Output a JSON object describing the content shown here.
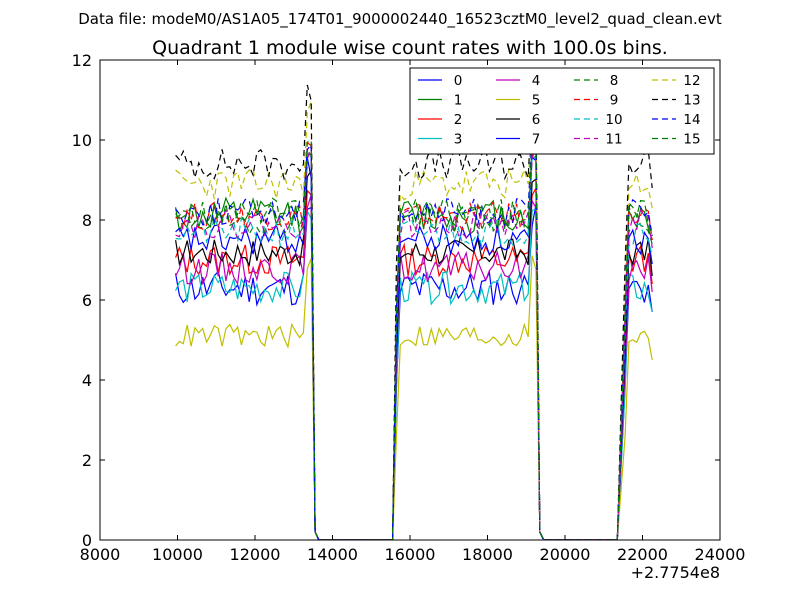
{
  "suptitle": "Data file: modeM0/AS1A05_174T01_9000002440_16523cztM0_level2_quad_clean.evt",
  "chart_data": {
    "type": "line",
    "title": "Quadrant 1 module wise count rates with 100.0s bins.",
    "xlabel": "",
    "ylabel": "",
    "x_offset_label": "+2.7754e8",
    "xlim": [
      8000,
      24000
    ],
    "ylim": [
      0,
      12
    ],
    "x_ticks": [
      8000,
      10000,
      12000,
      14000,
      16000,
      18000,
      20000,
      22000,
      24000
    ],
    "x_tick_labels": [
      "8000",
      "10000",
      "12000",
      "14000",
      "16000",
      "18000",
      "20000",
      "22000",
      "24000"
    ],
    "y_ticks": [
      0,
      2,
      4,
      6,
      8,
      10,
      12
    ],
    "y_tick_labels": [
      "0",
      "2",
      "4",
      "6",
      "8",
      "10",
      "12"
    ],
    "legend_position": "top-right",
    "legend_columns": 4,
    "segments": [
      {
        "start": 9950,
        "end": 13450,
        "step": 100
      },
      {
        "start": 15750,
        "end": 19250,
        "step": 100
      },
      {
        "start": 21650,
        "end": 22250,
        "step": 100
      }
    ],
    "gaps": [
      {
        "from": 13450,
        "down": 13550,
        "zero_start": 13650,
        "zero_end": 15550,
        "up": 15650
      },
      {
        "from": 19250,
        "down": 19350,
        "zero_start": 19450,
        "zero_end": 21350,
        "up": 21550
      }
    ],
    "series": [
      {
        "name": "0",
        "color": "#0000ff",
        "dash": "solid",
        "level": 6.3,
        "noise": 0.45,
        "seed": 11
      },
      {
        "name": "1",
        "color": "#008000",
        "dash": "solid",
        "level": 8.1,
        "noise": 0.45,
        "seed": 12
      },
      {
        "name": "2",
        "color": "#ff0000",
        "dash": "solid",
        "level": 7.0,
        "noise": 0.4,
        "seed": 13
      },
      {
        "name": "3",
        "color": "#00bfbf",
        "dash": "solid",
        "level": 6.3,
        "noise": 0.4,
        "seed": 14
      },
      {
        "name": "4",
        "color": "#bf00bf",
        "dash": "solid",
        "level": 6.8,
        "noise": 0.4,
        "seed": 15
      },
      {
        "name": "5",
        "color": "#bfbf00",
        "dash": "solid",
        "level": 5.1,
        "noise": 0.3,
        "seed": 16
      },
      {
        "name": "6",
        "color": "#000000",
        "dash": "solid",
        "level": 7.2,
        "noise": 0.35,
        "seed": 17
      },
      {
        "name": "7",
        "color": "#0000ff",
        "dash": "solid",
        "level": 7.5,
        "noise": 0.4,
        "seed": 18
      },
      {
        "name": "8",
        "color": "#008000",
        "dash": "dashed",
        "level": 8.0,
        "noise": 0.35,
        "seed": 19
      },
      {
        "name": "9",
        "color": "#ff0000",
        "dash": "dashed",
        "level": 8.1,
        "noise": 0.35,
        "seed": 20
      },
      {
        "name": "10",
        "color": "#00bfbf",
        "dash": "dashed",
        "level": 7.7,
        "noise": 0.35,
        "seed": 21
      },
      {
        "name": "11",
        "color": "#bf00bf",
        "dash": "dashed",
        "level": 7.9,
        "noise": 0.35,
        "seed": 22
      },
      {
        "name": "12",
        "color": "#bfbf00",
        "dash": "dashed",
        "level": 8.9,
        "noise": 0.4,
        "seed": 23
      },
      {
        "name": "13",
        "color": "#000000",
        "dash": "dashed",
        "level": 9.4,
        "noise": 0.4,
        "seed": 24
      },
      {
        "name": "14",
        "color": "#0000ff",
        "dash": "dashed",
        "level": 8.2,
        "noise": 0.35,
        "seed": 25
      },
      {
        "name": "15",
        "color": "#008000",
        "dash": "dashed",
        "level": 8.2,
        "noise": 0.35,
        "seed": 26
      }
    ]
  }
}
